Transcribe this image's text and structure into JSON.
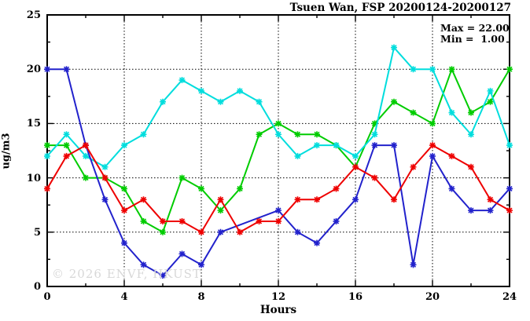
{
  "header": {
    "title": "Tsuen Wan, FSP 20200124-20200127"
  },
  "annotation": {
    "max_label": "Max = 22.00",
    "min_label": "Min =  1.00"
  },
  "watermark": "© 2026 ENVF, HKUST",
  "chart_data": {
    "type": "line",
    "title": "Tsuen Wan, FSP 20200124-20200127",
    "xlabel": "Hours",
    "ylabel": "ug/m3",
    "xlim": [
      0,
      24
    ],
    "ylim": [
      0,
      25
    ],
    "x_ticks": [
      0,
      4,
      8,
      12,
      16,
      20,
      24
    ],
    "y_ticks": [
      0,
      5,
      10,
      15,
      20,
      25
    ],
    "x_minor_step": 2,
    "y_minor_step": 2.5,
    "grid": true,
    "legend": "none",
    "marker": "asterisk",
    "x": [
      0,
      1,
      2,
      3,
      4,
      5,
      6,
      7,
      8,
      9,
      10,
      11,
      12,
      13,
      14,
      15,
      16,
      17,
      18,
      19,
      20,
      21,
      22,
      23,
      24
    ],
    "series": [
      {
        "name": "green-line",
        "color": "#00cc00",
        "values": [
          13,
          13,
          10,
          10,
          9,
          6,
          5,
          10,
          9,
          7,
          9,
          14,
          15,
          14,
          14,
          13,
          11,
          15,
          17,
          16,
          15,
          20,
          16,
          17,
          20
        ]
      },
      {
        "name": "cyan-line",
        "color": "#00dddd",
        "values": [
          12,
          14,
          12,
          11,
          13,
          14,
          17,
          19,
          18,
          17,
          18,
          17,
          14,
          12,
          13,
          13,
          12,
          14,
          22,
          20,
          20,
          16,
          14,
          18,
          13
        ]
      },
      {
        "name": "blue-line",
        "color": "#2222cc",
        "values": [
          20,
          20,
          13,
          8,
          4,
          2,
          1,
          3,
          2,
          5,
          null,
          null,
          7,
          5,
          4,
          6,
          8,
          13,
          13,
          2,
          12,
          9,
          7,
          7,
          9
        ]
      },
      {
        "name": "red-line",
        "color": "#ee0000",
        "values": [
          9,
          12,
          13,
          10,
          7,
          8,
          6,
          6,
          5,
          8,
          5,
          6,
          6,
          8,
          8,
          9,
          11,
          10,
          8,
          11,
          13,
          12,
          11,
          8,
          7
        ]
      }
    ],
    "stats": {
      "max": 22.0,
      "min": 1.0
    }
  }
}
